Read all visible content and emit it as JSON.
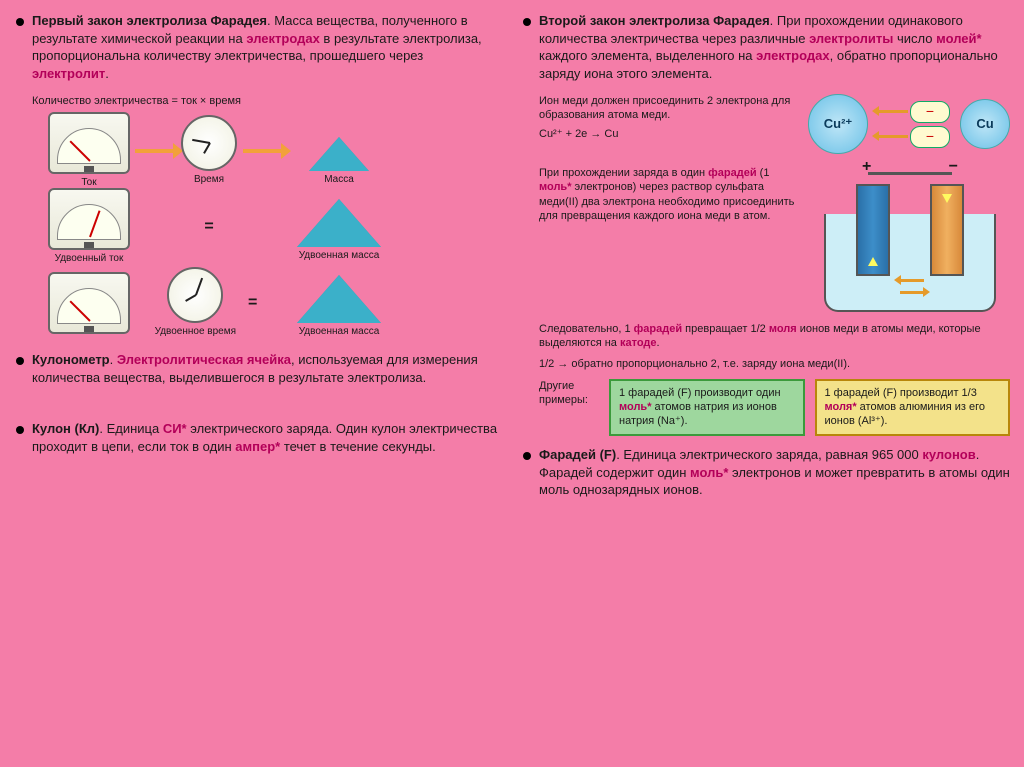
{
  "colors": {
    "page_bg": "#f47da8",
    "accent": "#b30059",
    "meter_needle": "#cc0000",
    "arrow": "#f2a13a",
    "pile": "#3bb0c9",
    "ion_fill": "#69c0e6",
    "box_green_bg": "#9ed79e",
    "box_green_border": "#3c9a3c",
    "box_yellow_bg": "#f3e28a",
    "box_yellow_border": "#b8860b",
    "beaker_fill": "#cdeef7",
    "electrode_a": "#3d8ec9",
    "electrode_b": "#f0b060"
  },
  "left": {
    "title_run": [
      {
        "t": "Первый закон электролиза Фарадея",
        "b": true
      },
      {
        "t": ". Масса вещества, полученного в результате химической реакции на "
      },
      {
        "t": "электродах",
        "a": true
      },
      {
        "t": " в результате электролиза, пропорциональна количеству электричества, прошедшего через "
      },
      {
        "t": "электролит",
        "a": true
      },
      {
        "t": "."
      }
    ],
    "formula": "Количество электричества = ток × время",
    "grid_labels": {
      "r1c1": "Ток",
      "r1c2": "Время",
      "r1c3": "Масса",
      "r2c1": "Удвоенный ток",
      "eq2": "=",
      "r2c3": "Удвоенная масса",
      "r3c2": "Удвоенное время",
      "eq3": "=",
      "r3c3": "Удвоенная масса"
    },
    "meter_angles": {
      "r1": -45,
      "r2": 20,
      "r3": -45
    },
    "clock_angles": {
      "r1": 100,
      "r3": 200
    },
    "coulometer_run": [
      {
        "t": "Кулонометр",
        "b": true
      },
      {
        "t": ". "
      },
      {
        "t": "Электролитическая ячейка",
        "a": true
      },
      {
        "t": ", используемая для измерения количества вещества, выделившегося в результате электролиза."
      }
    ],
    "coulomb_run": [
      {
        "t": "Кулон (Кл)",
        "b": true
      },
      {
        "t": ". Единица "
      },
      {
        "t": "СИ*",
        "a": true
      },
      {
        "t": " электрического заряда. Один кулон электричества проходит в цепи, если ток в один "
      },
      {
        "t": "ампер*",
        "a": true
      },
      {
        "t": " течет в течение секунды."
      }
    ]
  },
  "right": {
    "title_run": [
      {
        "t": "Второй закон электролиза Фарадея",
        "b": true
      },
      {
        "t": ". При прохождении одинакового количества электричества через различные "
      },
      {
        "t": "электролиты",
        "a": true
      },
      {
        "t": " число "
      },
      {
        "t": "молей*",
        "a": true
      },
      {
        "t": " каждого элемента, выделенного на "
      },
      {
        "t": "электродах",
        "a": true
      },
      {
        "t": ", обратно пропорционально заряду иона этого элемента."
      }
    ],
    "ion_text": "Ион меди должен присоединить 2 электрона для образования атома меди.",
    "ion_eq": "Cu²⁺ + 2e → Cu",
    "ion_labels": {
      "big": "Cu²⁺",
      "small": "Cu",
      "minus": "−"
    },
    "charge_para_run": [
      {
        "t": "При прохождении заряда в один "
      },
      {
        "t": "фарадей",
        "a": true
      },
      {
        "t": " (1 "
      },
      {
        "t": "моль*",
        "a": true
      },
      {
        "t": " электронов) через раствор сульфата меди(II) два электрона необходимо присоединить для превращения каждого иона меди в атом."
      }
    ],
    "cell_labels": {
      "plus": "+",
      "minus": "−"
    },
    "consequence_run": [
      {
        "t": "Следовательно, 1 "
      },
      {
        "t": "фарадей",
        "a": true
      },
      {
        "t": " превращает 1/2 "
      },
      {
        "t": "моля",
        "a": true
      },
      {
        "t": " ионов меди в атомы меди, которые выделяются на "
      },
      {
        "t": "катоде",
        "a": true
      },
      {
        "t": "."
      }
    ],
    "half_line": "1/2 → обратно пропорционально 2, т.е. заряду иона меди(II).",
    "examples_label": "Другие примеры:",
    "box_green_run": [
      {
        "t": "1 фарадей (F) производит один "
      },
      {
        "t": "моль*",
        "a": true
      },
      {
        "t": " атомов натрия из ионов натрия (Na⁺)."
      }
    ],
    "box_yellow_run": [
      {
        "t": "1 фарадей (F) производит 1/3 "
      },
      {
        "t": "моля*",
        "a": true
      },
      {
        "t": " атомов алюминия из его ионов (Al³⁺)."
      }
    ],
    "faraday_run": [
      {
        "t": "Фарадей (F)",
        "b": true
      },
      {
        "t": ". Единица электрического заряда, равная 965 000 "
      },
      {
        "t": "кулонов",
        "a": true
      },
      {
        "t": ". Фарадей содержит один "
      },
      {
        "t": "моль*",
        "a": true
      },
      {
        "t": " электронов и может превратить в атомы один моль однозарядных ионов."
      }
    ]
  }
}
